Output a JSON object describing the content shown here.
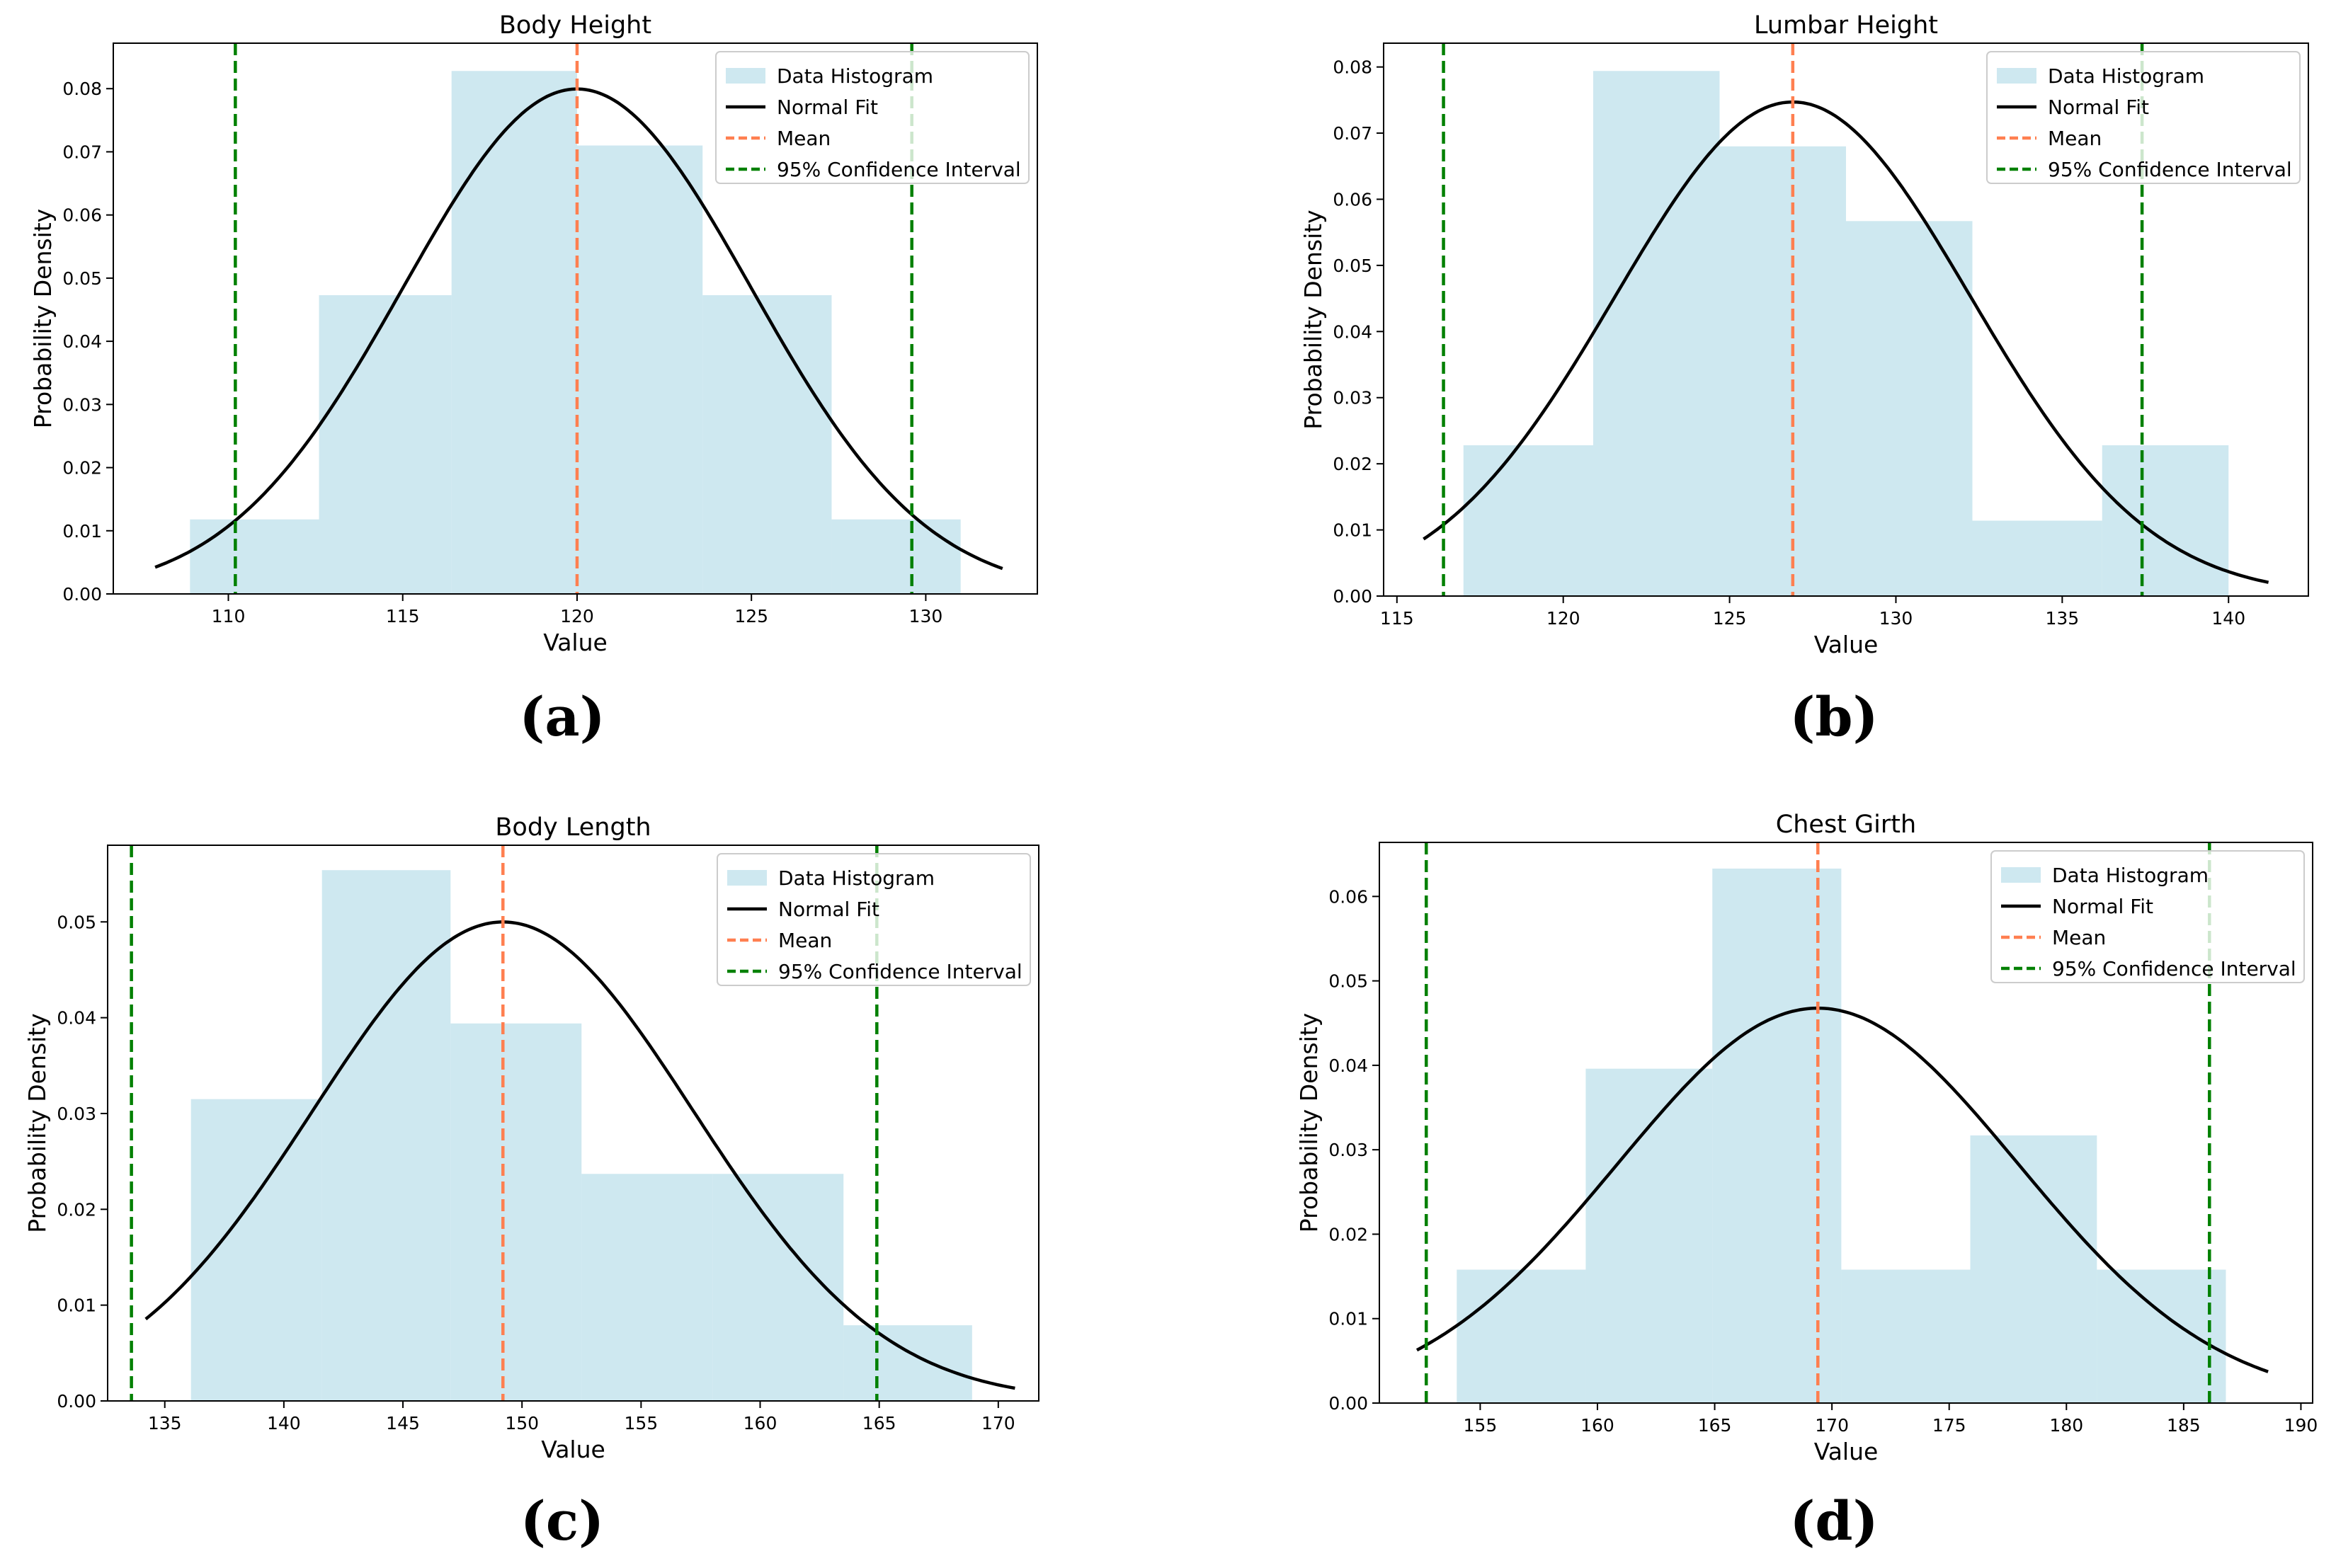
{
  "colors": {
    "histogram": "#add8e6",
    "normal_fit": "#000000",
    "mean": "#ff7f50",
    "confidence": "#008000",
    "axis": "#000000",
    "background": "#ffffff"
  },
  "legend_labels": [
    "Data Histogram",
    "Normal Fit",
    "Mean",
    "95% Confidence Interval"
  ],
  "chart_data": [
    {
      "panel": "(a)",
      "type": "bar",
      "title": "Body Height",
      "xlabel": "Value",
      "ylabel": "Probability Density",
      "xlim": [
        106.7,
        133.2
      ],
      "ylim": [
        0,
        0.0872
      ],
      "xticks": [
        110,
        115,
        120,
        125,
        130
      ],
      "xtick_labels": [
        "110",
        "115",
        "120",
        "125",
        "130"
      ],
      "yticks": [
        0,
        0.01,
        0.02,
        0.03,
        0.04,
        0.05,
        0.06,
        0.07,
        0.08
      ],
      "ytick_labels": [
        "0.00",
        "0.01",
        "0.02",
        "0.03",
        "0.04",
        "0.05",
        "0.06",
        "0.07",
        "0.08"
      ],
      "bin_edges": [
        108.9,
        112.6,
        116.4,
        120.0,
        123.6,
        127.3,
        131.0
      ],
      "densities": [
        0.0118,
        0.0473,
        0.0828,
        0.071,
        0.0473,
        0.0118
      ],
      "normal_fit": {
        "mean": 120.0,
        "sd": 4.99,
        "x_range": [
          107.9,
          132.2
        ]
      },
      "mean": 120.0,
      "ci95": [
        110.2,
        129.6
      ],
      "grid": false,
      "legend_position": "top-right"
    },
    {
      "panel": "(b)",
      "type": "bar",
      "title": "Lumbar Height",
      "xlabel": "Value",
      "ylabel": "Probability Density",
      "xlim": [
        114.6,
        142.4
      ],
      "ylim": [
        0,
        0.0836
      ],
      "xticks": [
        115,
        120,
        125,
        130,
        135,
        140
      ],
      "xtick_labels": [
        "115",
        "120",
        "125",
        "130",
        "135",
        "140"
      ],
      "yticks": [
        0,
        0.01,
        0.02,
        0.03,
        0.04,
        0.05,
        0.06,
        0.07,
        0.08
      ],
      "ytick_labels": [
        "0.00",
        "0.01",
        "0.02",
        "0.03",
        "0.04",
        "0.05",
        "0.06",
        "0.07",
        "0.08"
      ],
      "bin_edges": [
        117.0,
        120.9,
        124.7,
        128.5,
        132.3,
        136.2,
        140.0
      ],
      "densities": [
        0.0228,
        0.0794,
        0.068,
        0.0567,
        0.0114,
        0.0228
      ],
      "normal_fit": {
        "mean": 126.9,
        "sd": 5.34,
        "x_range": [
          115.8,
          141.2
        ]
      },
      "mean": 126.9,
      "ci95": [
        116.4,
        137.4
      ],
      "grid": false,
      "legend_position": "top-right"
    },
    {
      "panel": "(c)",
      "type": "bar",
      "title": "Body Length",
      "xlabel": "Value",
      "ylabel": "Probability Density",
      "xlim": [
        132.6,
        171.7
      ],
      "ylim": [
        0,
        0.058
      ],
      "xticks": [
        135,
        140,
        145,
        150,
        155,
        160,
        165,
        170
      ],
      "xtick_labels": [
        "135",
        "140",
        "145",
        "150",
        "155",
        "160",
        "165",
        "170"
      ],
      "yticks": [
        0,
        0.01,
        0.02,
        0.03,
        0.04,
        0.05
      ],
      "ytick_labels": [
        "0.00",
        "0.01",
        "0.02",
        "0.03",
        "0.04",
        "0.05"
      ],
      "bin_edges": [
        136.1,
        141.6,
        147.0,
        152.5,
        158.0,
        163.5,
        168.9
      ],
      "densities": [
        0.0315,
        0.0554,
        0.0394,
        0.0237,
        0.0237,
        0.0079
      ],
      "normal_fit": {
        "mean": 149.2,
        "sd": 7.98,
        "x_range": [
          134.2,
          170.7
        ]
      },
      "mean": 149.2,
      "ci95": [
        133.6,
        164.9
      ],
      "grid": false,
      "legend_position": "top-right"
    },
    {
      "panel": "(d)",
      "type": "bar",
      "title": "Chest Girth",
      "xlabel": "Value",
      "ylabel": "Probability Density",
      "xlim": [
        150.7,
        190.5
      ],
      "ylim": [
        0,
        0.0664
      ],
      "xticks": [
        155,
        160,
        165,
        170,
        175,
        180,
        185,
        190
      ],
      "xtick_labels": [
        "155",
        "160",
        "165",
        "170",
        "175",
        "180",
        "185",
        "190"
      ],
      "yticks": [
        0,
        0.01,
        0.02,
        0.03,
        0.04,
        0.05,
        0.06
      ],
      "ytick_labels": [
        "0.00",
        "0.01",
        "0.02",
        "0.03",
        "0.04",
        "0.05",
        "0.06"
      ],
      "bin_edges": [
        154.0,
        159.5,
        164.9,
        170.4,
        175.9,
        181.3,
        186.8
      ],
      "densities": [
        0.0158,
        0.0396,
        0.0633,
        0.0158,
        0.0317,
        0.0158
      ],
      "normal_fit": {
        "mean": 169.4,
        "sd": 8.53,
        "x_range": [
          152.3,
          188.6
        ]
      },
      "mean": 169.4,
      "ci95": [
        152.7,
        186.1
      ],
      "grid": false,
      "legend_position": "top-right"
    }
  ]
}
